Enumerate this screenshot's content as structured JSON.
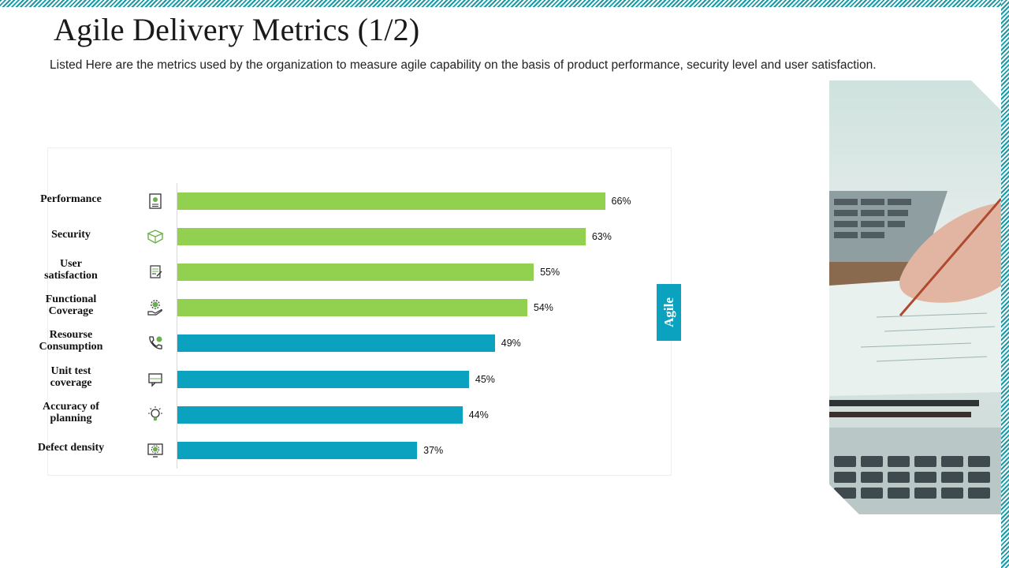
{
  "header": {
    "title": "Agile Delivery Metrics (1/2)",
    "subtitle": "Listed Here are the metrics used by the organization to measure agile capability on the basis of product performance, security level and user satisfaction."
  },
  "side_tag": {
    "label": "Agile"
  },
  "colors": {
    "green": "#92d050",
    "teal": "#0aa2bf"
  },
  "chart_data": {
    "type": "bar",
    "orientation": "horizontal",
    "title": "",
    "xlabel": "",
    "ylabel": "",
    "xlim": [
      0,
      100
    ],
    "grid": false,
    "categories": [
      {
        "lines": [
          "Performance"
        ],
        "icon": "certificate-icon",
        "color": "green"
      },
      {
        "lines": [
          "Security"
        ],
        "icon": "shield-box-icon",
        "color": "green"
      },
      {
        "lines": [
          "User",
          "satisfaction"
        ],
        "icon": "feedback-form-icon",
        "color": "green"
      },
      {
        "lines": [
          "Functional",
          "Coverage"
        ],
        "icon": "gear-hand-icon",
        "color": "green"
      },
      {
        "lines": [
          "Resourse",
          "Consumption"
        ],
        "icon": "phone-icon",
        "color": "teal"
      },
      {
        "lines": [
          "Unit test",
          "coverage"
        ],
        "icon": "message-box-icon",
        "color": "teal"
      },
      {
        "lines": [
          "Accuracy of",
          "planning"
        ],
        "icon": "lightbulb-icon",
        "color": "teal"
      },
      {
        "lines": [
          "Defect density"
        ],
        "icon": "monitor-gear-icon",
        "color": "teal"
      }
    ],
    "values": [
      66,
      63,
      55,
      54,
      49,
      45,
      44,
      37
    ],
    "value_labels": [
      "66%",
      "63%",
      "55%",
      "54%",
      "49%",
      "45%",
      "44%",
      "37%"
    ]
  }
}
